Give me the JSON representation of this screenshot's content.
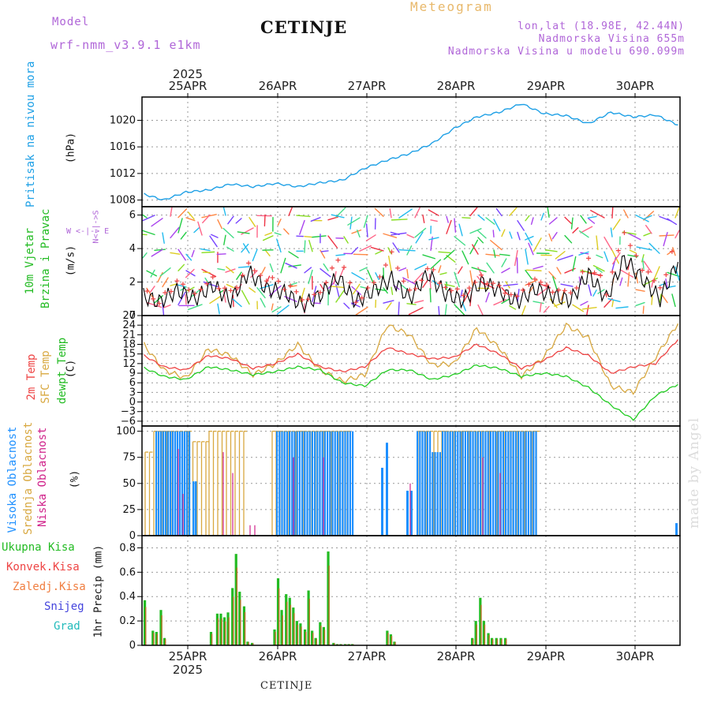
{
  "header": {
    "model_label": "Model",
    "model_name": "wrf-nmm_v3.9.1 e1km",
    "title": "CETINJE",
    "meteogram": "Meteogram",
    "lonlat": "lon,lat (18.98E, 42.44N)",
    "elevation": "Nadmorska Visina 655m",
    "model_elevation": "Nadmorska Visina u modelu 690.099m",
    "footer": "CETINJE",
    "watermark": "made by Angel"
  },
  "colors": {
    "pressure": "#1ea0e6",
    "t2m": "#ee4444",
    "sfc": "#d8a840",
    "dewpt": "#22cc22",
    "high_cloud": "#1e90ff",
    "mid_cloud": "#d8a840",
    "low_cloud": "#d0228a",
    "total_precip": "#22bb22",
    "conv_precip": "#ee4444",
    "wind_speed": "#000000",
    "gust": "#ee4444"
  },
  "axes": {
    "year": "2025",
    "days": [
      "25APR",
      "26APR",
      "27APR",
      "28APR",
      "29APR",
      "30APR"
    ]
  },
  "panel_labels": {
    "pressure": {
      "name": "Pritisak na nivou mora",
      "unit": "(hPa)"
    },
    "wind": {
      "name1": "10m Vjetar",
      "name2": "Brzina i Pravac",
      "unit": "(m/s)",
      "compass_ns": "N<-|->S",
      "compass_we": "W <-|-> E"
    },
    "temp": {
      "name1": "2m Temp",
      "name2": "SFC Temp",
      "name3": "dewpt Temp",
      "unit": "(C)"
    },
    "cloud": {
      "name1": "Visoka Oblacnost",
      "name2": "Srednja Oblacnost",
      "name3": "Niska Oblacnost",
      "unit": "(%)"
    },
    "precip": {
      "unit": "1hr Precip (mm)",
      "legend": [
        "Ukupna Kisa",
        "Konvek.Kisa",
        "Zaledj.Kisa",
        "Snijeg",
        "Grad"
      ]
    }
  },
  "chart_data": [
    {
      "type": "line",
      "title": "Pritisak na nivou mora",
      "ylabel": "(hPa)",
      "ylim": [
        1007,
        1023.5
      ],
      "yticks": [
        "1008",
        "1012",
        "1016",
        "1020"
      ],
      "x": [
        0,
        0.25,
        0.5,
        0.75,
        1.0,
        1.25,
        1.5,
        1.75,
        2.0,
        2.25,
        2.5,
        2.75,
        3.0,
        3.25,
        3.5,
        3.75,
        4.0,
        4.25,
        4.5,
        4.75,
        5.0,
        5.25,
        5.5,
        5.75,
        6.0
      ],
      "values": [
        1009.0,
        1008.0,
        1009.2,
        1009.5,
        1010.4,
        1010.0,
        1010.5,
        1010.0,
        1010.6,
        1011.0,
        1012.8,
        1014.0,
        1015.0,
        1016.5,
        1018.8,
        1020.5,
        1021.2,
        1022.5,
        1021.0,
        1020.7,
        1019.5,
        1021.2,
        1020.5,
        1020.8,
        1019.3
      ],
      "grid": true
    },
    {
      "type": "line",
      "title": "10m Vjetar Brzina i Pravac",
      "ylabel": "(m/s)",
      "ylim": [
        0,
        6.5
      ],
      "yticks": [
        "0",
        "2",
        "4",
        "6"
      ],
      "x": [
        0,
        0.2,
        0.4,
        0.6,
        0.8,
        1.0,
        1.2,
        1.4,
        1.6,
        1.8,
        2.0,
        2.2,
        2.4,
        2.6,
        2.8,
        3.0,
        3.2,
        3.4,
        3.6,
        3.8,
        4.0,
        4.2,
        4.4,
        4.6,
        4.8,
        5.0,
        5.2,
        5.4,
        5.6,
        5.8,
        6.0
      ],
      "series": [
        {
          "values": [
            1.2,
            0.8,
            1.5,
            1.0,
            1.8,
            0.9,
            2.6,
            1.6,
            1.4,
            0.6,
            1.2,
            2.3,
            0.8,
            1.5,
            2.2,
            1.0,
            2.5,
            1.3,
            0.9,
            2.0,
            1.5,
            0.8,
            1.6,
            1.2,
            0.9,
            2.5,
            1.0,
            3.4,
            2.2,
            1.0,
            3.2
          ]
        },
        {
          "values": [
            1.5,
            1.0,
            2.0,
            1.4,
            2.2,
            1.2,
            3.0,
            2.2,
            1.8,
            0.9,
            1.6,
            3.5,
            1.0,
            2.0,
            3.8,
            1.4,
            2.8,
            1.8,
            1.2,
            2.4,
            1.6,
            1.0,
            2.0,
            1.5,
            1.2,
            3.4,
            1.5,
            4.8,
            3.0,
            1.8,
            4.6
          ]
        }
      ],
      "grid": true
    },
    {
      "type": "line",
      "title": "2m Temp / SFC Temp / dewpt Temp",
      "ylabel": "(C)",
      "ylim": [
        -7.5,
        27
      ],
      "yticks": [
        "27",
        "24",
        "21",
        "18",
        "15",
        "12",
        "9",
        "6",
        "3",
        "0",
        "−3",
        "−6"
      ],
      "x": [
        0,
        0.25,
        0.5,
        0.75,
        1.0,
        1.25,
        1.5,
        1.75,
        2.0,
        2.25,
        2.5,
        2.75,
        3.0,
        3.25,
        3.5,
        3.75,
        4.0,
        4.25,
        4.5,
        4.75,
        5.0,
        5.25,
        5.5,
        5.75,
        6.0
      ],
      "series": [
        {
          "name": "2m Temp",
          "values": [
            15,
            11,
            10,
            14.5,
            13.5,
            10.5,
            12,
            15,
            11,
            9.5,
            11,
            17,
            15,
            13.5,
            14,
            18,
            15,
            10.5,
            13,
            17,
            14.5,
            9,
            11,
            12,
            19.5
          ]
        },
        {
          "name": "SFC Temp",
          "values": [
            19,
            10,
            7.5,
            16.5,
            14.5,
            8.5,
            12,
            18,
            10,
            6.5,
            8.5,
            24,
            21,
            11.5,
            12,
            23,
            17,
            8,
            14,
            24,
            20,
            5,
            3,
            14,
            24.5
          ]
        },
        {
          "name": "dewpt Temp",
          "values": [
            11,
            8,
            7,
            11,
            10,
            8.5,
            9.5,
            11,
            10,
            6,
            5,
            10,
            10,
            7,
            8.5,
            11.5,
            10.5,
            8,
            9,
            8,
            4.5,
            -1,
            -5.5,
            2,
            5.5
          ]
        }
      ],
      "grid": true
    },
    {
      "type": "bar",
      "title": "Visoka / Srednja / Niska Oblacnost",
      "ylabel": "(%)",
      "ylim": [
        0,
        105
      ],
      "yticks": [
        "0",
        "25",
        "50",
        "75",
        "100"
      ],
      "grid": true
    },
    {
      "type": "bar",
      "title": "1hr Precip",
      "ylabel": "1hr Precip (mm)",
      "ylim": [
        0,
        0.9
      ],
      "yticks": [
        "0",
        "0.2",
        "0.4",
        "0.6",
        "0.8"
      ],
      "x": [
        0.04,
        0.13,
        0.17,
        0.22,
        0.26,
        0.78,
        0.85,
        0.89,
        0.93,
        0.97,
        1.02,
        1.06,
        1.1,
        1.15,
        1.19,
        1.24,
        1.49,
        1.53,
        1.57,
        1.62,
        1.66,
        1.7,
        1.74,
        1.78,
        1.83,
        1.87,
        1.91,
        1.95,
        2.0,
        2.04,
        2.09,
        2.15,
        2.19,
        2.23,
        2.28,
        2.32,
        2.36,
        2.75,
        2.79,
        2.83,
        3.7,
        3.74,
        3.79,
        3.83,
        3.88,
        3.92,
        3.97,
        4.02,
        4.07
      ],
      "values": [
        0.37,
        0.12,
        0.11,
        0.29,
        0.06,
        0.11,
        0.26,
        0.26,
        0.23,
        0.27,
        0.47,
        0.75,
        0.44,
        0.32,
        0.03,
        0.02,
        0.13,
        0.55,
        0.29,
        0.42,
        0.39,
        0.31,
        0.2,
        0.18,
        0.13,
        0.45,
        0.12,
        0.06,
        0.19,
        0.15,
        0.77,
        0.02,
        0.01,
        0.01,
        0.01,
        0.01,
        0.01,
        0.12,
        0.09,
        0.03,
        0.06,
        0.2,
        0.39,
        0.2,
        0.1,
        0.06,
        0.06,
        0.06,
        0.06
      ],
      "grid": true
    }
  ]
}
